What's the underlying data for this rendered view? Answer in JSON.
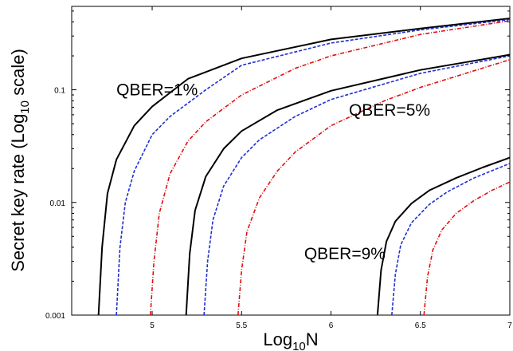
{
  "chart_data": {
    "type": "line",
    "title": "",
    "xlabel": "Log",
    "xlabel_sub": "10",
    "xlabel_suffix": "N",
    "ylabel": "Secret key rate (Log",
    "ylabel_sub": "10",
    "ylabel_suffix": " scale)",
    "xlim": [
      4.55,
      7.0
    ],
    "ylim": [
      0.001,
      0.55
    ],
    "y_scale": "log",
    "grid": false,
    "x_ticks": [
      5,
      5.5,
      6,
      6.5,
      7
    ],
    "x_tick_labels": [
      "5",
      "5.5",
      "6",
      "6.5",
      "7"
    ],
    "y_ticks": [
      0.001,
      0.01,
      0.1
    ],
    "y_tick_labels": [
      "0.001",
      "0.01",
      "0.1"
    ],
    "style_colors": {
      "black": "#000000",
      "blue": "#1f2fd0",
      "red": "#e01010"
    },
    "series": [
      {
        "group": "QBER=1%",
        "style": "solid",
        "color": "#000000",
        "x": [
          4.7,
          4.72,
          4.75,
          4.8,
          4.9,
          5.0,
          5.2,
          5.5,
          6.0,
          6.5,
          7.0
        ],
        "y": [
          0.001,
          0.004,
          0.012,
          0.024,
          0.048,
          0.071,
          0.125,
          0.19,
          0.28,
          0.35,
          0.43
        ]
      },
      {
        "group": "QBER=1%",
        "style": "dashed",
        "color": "#1f2fd0",
        "x": [
          4.8,
          4.82,
          4.85,
          4.9,
          5.0,
          5.1,
          5.3,
          5.5,
          6.0,
          6.5,
          7.0
        ],
        "y": [
          0.001,
          0.004,
          0.01,
          0.019,
          0.04,
          0.058,
          0.1,
          0.165,
          0.26,
          0.34,
          0.42
        ]
      },
      {
        "group": "QBER=1%",
        "style": "dashdot",
        "color": "#e01010",
        "x": [
          4.99,
          5.01,
          5.04,
          5.1,
          5.2,
          5.3,
          5.5,
          5.8,
          6.0,
          6.5,
          7.0
        ],
        "y": [
          0.001,
          0.003,
          0.008,
          0.018,
          0.035,
          0.052,
          0.09,
          0.155,
          0.2,
          0.31,
          0.41
        ]
      },
      {
        "group": "QBER=5%",
        "style": "solid",
        "color": "#000000",
        "x": [
          5.19,
          5.21,
          5.24,
          5.3,
          5.4,
          5.5,
          5.7,
          6.0,
          6.5,
          7.0
        ],
        "y": [
          0.001,
          0.0035,
          0.0085,
          0.017,
          0.03,
          0.043,
          0.066,
          0.098,
          0.15,
          0.205
        ]
      },
      {
        "group": "QBER=5%",
        "style": "dashed",
        "color": "#1f2fd0",
        "x": [
          5.29,
          5.31,
          5.34,
          5.4,
          5.5,
          5.6,
          5.8,
          6.0,
          6.5,
          7.0
        ],
        "y": [
          0.001,
          0.003,
          0.007,
          0.014,
          0.025,
          0.036,
          0.058,
          0.082,
          0.14,
          0.2
        ]
      },
      {
        "group": "QBER=5%",
        "style": "dashdot",
        "color": "#e01010",
        "x": [
          5.48,
          5.5,
          5.53,
          5.6,
          5.7,
          5.8,
          6.0,
          6.3,
          6.5,
          7.0
        ],
        "y": [
          0.001,
          0.0025,
          0.0055,
          0.011,
          0.019,
          0.028,
          0.048,
          0.08,
          0.105,
          0.185
        ]
      },
      {
        "group": "QBER=9%",
        "style": "solid",
        "color": "#000000",
        "x": [
          6.26,
          6.28,
          6.31,
          6.36,
          6.45,
          6.55,
          6.7,
          6.85,
          7.0
        ],
        "y": [
          0.001,
          0.0025,
          0.0045,
          0.0068,
          0.0098,
          0.0128,
          0.0165,
          0.0205,
          0.025
        ]
      },
      {
        "group": "QBER=9%",
        "style": "dashed",
        "color": "#1f2fd0",
        "x": [
          6.34,
          6.36,
          6.39,
          6.45,
          6.55,
          6.65,
          6.8,
          7.0
        ],
        "y": [
          0.001,
          0.0023,
          0.0042,
          0.0066,
          0.0096,
          0.0124,
          0.0165,
          0.0222
        ]
      },
      {
        "group": "QBER=9%",
        "style": "dashdot",
        "color": "#e01010",
        "x": [
          6.52,
          6.54,
          6.57,
          6.62,
          6.7,
          6.8,
          6.9,
          7.0
        ],
        "y": [
          0.001,
          0.0022,
          0.0038,
          0.0057,
          0.008,
          0.0104,
          0.0128,
          0.0152
        ]
      }
    ],
    "annotations": [
      {
        "text": "QBER=1%",
        "x": 4.8,
        "y": 0.1
      },
      {
        "text": "QBER=5%",
        "x": 6.1,
        "y": 0.066
      },
      {
        "text": "QBER=9%",
        "x": 5.85,
        "y": 0.0035
      }
    ]
  }
}
